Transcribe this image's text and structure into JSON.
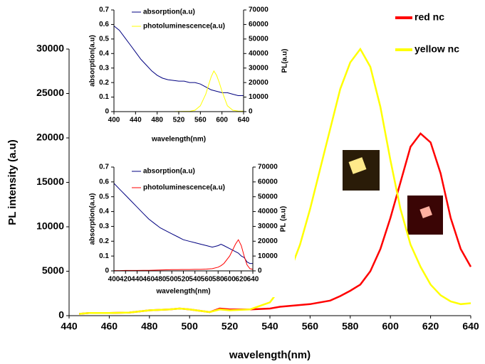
{
  "chart_data": [
    {
      "type": "line",
      "x_label": "wavelength(nm)",
      "y_label": "PL intensity (a.u)",
      "x": [
        445,
        450,
        460,
        470,
        480,
        490,
        495,
        500,
        510,
        515,
        520,
        530,
        540,
        545,
        550,
        555,
        560,
        565,
        570,
        575,
        580,
        585,
        590,
        595,
        600,
        605,
        610,
        615,
        620,
        625,
        630,
        635,
        640
      ],
      "series": [
        {
          "name": "red nc",
          "color": "#ff0000",
          "values": [
            200,
            300,
            300,
            350,
            600,
            700,
            800,
            700,
            400,
            800,
            700,
            700,
            800,
            1000,
            1100,
            1200,
            1300,
            1500,
            1700,
            2200,
            2800,
            3500,
            5000,
            7500,
            11000,
            15000,
            19000,
            20500,
            19500,
            16000,
            11000,
            7500,
            5500
          ]
        },
        {
          "name": "yellow nc",
          "color": "#ffff00",
          "values": [
            200,
            300,
            300,
            350,
            600,
            700,
            800,
            700,
            400,
            700,
            600,
            700,
            1500,
            3000,
            5000,
            8000,
            12000,
            16500,
            21000,
            25500,
            28500,
            30000,
            28000,
            23500,
            17500,
            12000,
            8000,
            5500,
            3500,
            2300,
            1600,
            1300,
            1400
          ]
        }
      ],
      "xlim": [
        440,
        640
      ],
      "xticks": [
        440,
        460,
        480,
        500,
        520,
        540,
        560,
        580,
        600,
        620,
        640
      ],
      "ylim": [
        0,
        30000
      ],
      "yticks": [
        0,
        5000,
        10000,
        15000,
        20000,
        25000,
        30000
      ],
      "legend": "upper right"
    },
    {
      "type": "line",
      "x_label": "wavelength(nm)",
      "y_label": "absorption(a.u)",
      "y2_label": "PL(a.u)",
      "x": [
        400,
        410,
        420,
        430,
        440,
        450,
        460,
        470,
        480,
        490,
        500,
        510,
        520,
        530,
        540,
        550,
        560,
        570,
        575,
        580,
        585,
        590,
        595,
        600,
        610,
        620,
        630,
        640
      ],
      "series": [
        {
          "name": "absorption(a.u)",
          "color": "#000080",
          "values": [
            0.59,
            0.56,
            0.51,
            0.46,
            0.41,
            0.36,
            0.32,
            0.28,
            0.25,
            0.23,
            0.22,
            0.215,
            0.21,
            0.21,
            0.2,
            0.2,
            0.19,
            0.17,
            0.16,
            0.15,
            0.145,
            0.14,
            0.135,
            0.13,
            0.13,
            0.12,
            0.11,
            0.11
          ]
        },
        {
          "name": "photoluminescence(a.u)",
          "color": "#ffff00",
          "axis": "y2",
          "values": [
            0,
            0,
            0,
            0,
            0,
            0,
            0,
            0,
            0,
            0,
            0,
            0,
            100,
            200,
            200,
            1000,
            4000,
            12000,
            18000,
            24000,
            28000,
            25000,
            20000,
            14000,
            4000,
            1000,
            400,
            300
          ]
        }
      ],
      "xlim": [
        400,
        640
      ],
      "xticks": [
        400,
        440,
        480,
        520,
        560,
        600,
        640
      ],
      "ylim": [
        0,
        0.7
      ],
      "yticks": [
        0,
        0.1,
        0.2,
        0.3,
        0.4,
        0.5,
        0.6,
        0.7
      ],
      "y2lim": [
        0,
        70000
      ],
      "y2ticks": [
        0,
        10000,
        20000,
        30000,
        40000,
        50000,
        60000,
        70000
      ],
      "legend": "upper left"
    },
    {
      "type": "line",
      "x_label": "wavelength(nm)",
      "y_label": "absorption(a.u)",
      "y2_label": "PL (a.u)",
      "x": [
        400,
        410,
        420,
        430,
        440,
        450,
        460,
        470,
        480,
        490,
        500,
        510,
        520,
        530,
        540,
        550,
        560,
        570,
        580,
        585,
        590,
        600,
        605,
        610,
        615,
        620,
        625,
        630,
        635,
        640
      ],
      "series": [
        {
          "name": "absorption(a.u)",
          "color": "#000080",
          "values": [
            0.59,
            0.55,
            0.51,
            0.47,
            0.43,
            0.39,
            0.35,
            0.32,
            0.29,
            0.27,
            0.25,
            0.23,
            0.21,
            0.2,
            0.19,
            0.18,
            0.17,
            0.16,
            0.17,
            0.18,
            0.17,
            0.15,
            0.14,
            0.13,
            0.12,
            0.1,
            0.09,
            0.06,
            0.05,
            0.05
          ],
          "_": null
        },
        {
          "name": "photoluminescence(a.u)",
          "color": "#ff0000",
          "axis": "y2",
          "values": [
            200,
            200,
            300,
            300,
            300,
            400,
            400,
            500,
            600,
            700,
            800,
            800,
            900,
            900,
            1000,
            1000,
            1200,
            1500,
            2500,
            3500,
            5000,
            10000,
            14000,
            18000,
            21000,
            17000,
            10000,
            4000,
            1500,
            1000
          ]
        }
      ],
      "xlim": [
        400,
        640
      ],
      "xticks": [
        400,
        420,
        440,
        460,
        480,
        500,
        520,
        540,
        560,
        580,
        600,
        620,
        640
      ],
      "ylim": [
        0,
        0.7
      ],
      "yticks": [
        0,
        0.1,
        0.2,
        0.3,
        0.4,
        0.5,
        0.6,
        0.7
      ],
      "y2lim": [
        0,
        70000
      ],
      "y2ticks": [
        0,
        10000,
        20000,
        30000,
        40000,
        50000,
        60000,
        70000
      ],
      "legend": "upper left"
    }
  ]
}
